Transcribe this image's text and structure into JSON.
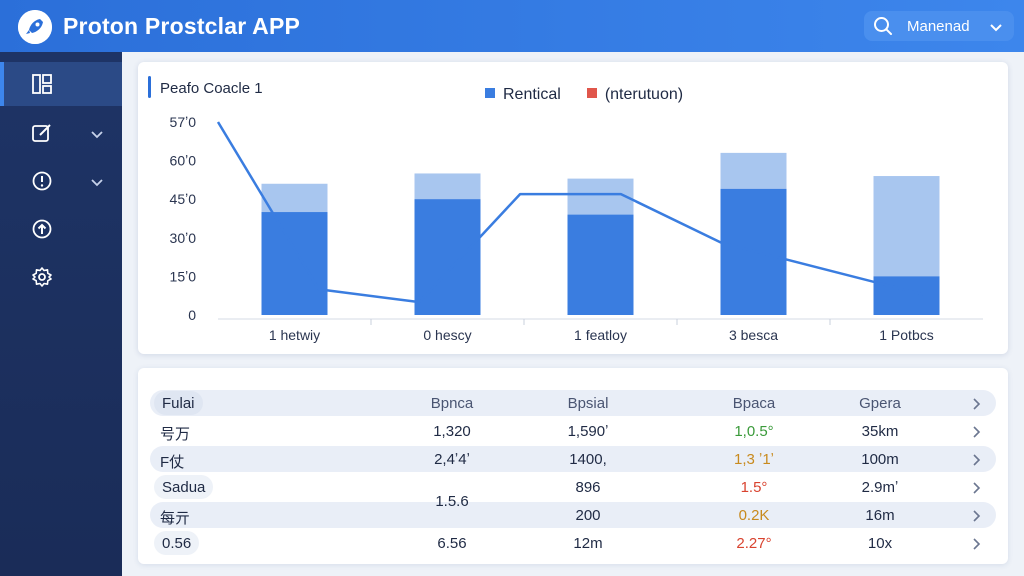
{
  "header": {
    "app_title": "Proton Prostclar APP",
    "user_label": "Manenad",
    "logo_icon": "rocket-icon",
    "search_icon": "search-icon",
    "chevron_icon": "chevron-down-icon",
    "bar_color": "#2b6fd9"
  },
  "sidebar": {
    "items": [
      {
        "icon": "grid-icon",
        "has_chevron": false,
        "active": true
      },
      {
        "icon": "edit-icon",
        "has_chevron": true,
        "active": false
      },
      {
        "icon": "alert-circle-icon",
        "has_chevron": true,
        "active": false
      },
      {
        "icon": "upload-icon",
        "has_chevron": false,
        "active": false
      },
      {
        "icon": "settings-icon",
        "has_chevron": false,
        "active": false
      }
    ]
  },
  "chart_card": {
    "title": "Peafo Coacle 1",
    "legend": [
      {
        "label": "Rentical",
        "color": "#3a7de0"
      },
      {
        "label": "(nterutuon)",
        "color": "#e0564b"
      }
    ]
  },
  "chart_data": {
    "type": "bar",
    "categories": [
      "1 hetwiy",
      "0 hescy",
      "1 featloy",
      "3 besca",
      "1 Potbcs"
    ],
    "y_ticks": [
      "0",
      "15ʼ0",
      "30ʼ0",
      "45ʼ0",
      "60ʼ0",
      "57ʼ0"
    ],
    "ylim": [
      0,
      75
    ],
    "series": [
      {
        "name": "Rentical",
        "values": [
          40,
          45,
          39,
          49,
          15
        ]
      },
      {
        "values": [
          51,
          55,
          53,
          63,
          54
        ]
      }
    ],
    "line": [
      75,
      10,
      5,
      47,
      47,
      28,
      18,
      8
    ],
    "grid": false,
    "legend_position": "top-center",
    "colors": {
      "bar": "#3a7de0",
      "bar_light": "#a8c6ef",
      "line": "#3a7de0"
    }
  },
  "table": {
    "header": [
      "Fulai",
      "Bpnca",
      "Bpsial",
      "Bpaca",
      "Gpera"
    ],
    "rows": [
      {
        "label": "号万",
        "c1": "1,320",
        "c2": "1,590ʼ",
        "c3": "1,0.5°",
        "c3_color": "#3a9a3a",
        "c4": "35km"
      },
      {
        "label": "F仗",
        "c1": "2,4ʼ4ʼ",
        "c2": "1400,",
        "c3": "1,3 ʼ1ʼ",
        "c3_color": "#c88a1e",
        "c4": "100m"
      },
      {
        "label": "Sadua",
        "c1": "",
        "c2": "896",
        "c3": "1.5°",
        "c3_color": "#d9432f",
        "c4": "2.9mʼ"
      },
      {
        "label": "每亓",
        "c1": "",
        "c2": "200",
        "c3": "0.2K",
        "c3_color": "#c88a1e",
        "c4": "16m"
      },
      {
        "label": "0.56",
        "c1": "6.56",
        "c2": "12m",
        "c3": "2.27°",
        "c3_color": "#d9432f",
        "c4": "10x"
      }
    ],
    "merged_value": "1.5.6",
    "row_arrow_icon": "chevron-right-icon"
  }
}
